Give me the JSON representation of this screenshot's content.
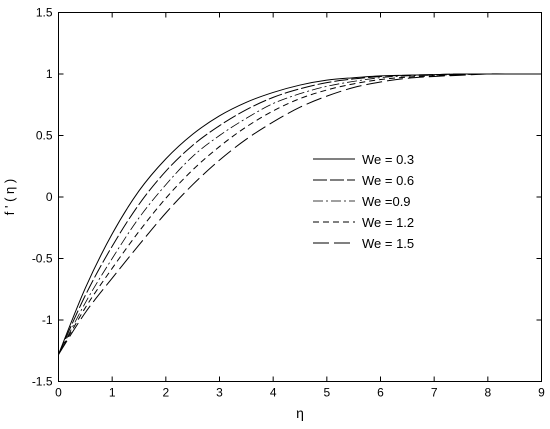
{
  "chart_data": {
    "type": "line",
    "title": "",
    "xlabel": "η",
    "ylabel": "f ' ( η )",
    "xlim": [
      0,
      9
    ],
    "ylim": [
      -1.5,
      1.5
    ],
    "xticks": [
      "0",
      "1",
      "2",
      "3",
      "4",
      "5",
      "6",
      "7",
      "8",
      "9"
    ],
    "yticks": [
      "-1.5",
      "-1",
      "-0.5",
      "0",
      "0.5",
      "1",
      "1.5"
    ],
    "grid": false,
    "legend_position": "center-right",
    "series": [
      {
        "name": "We = 0.3",
        "style": "solid",
        "x": [
          0,
          0.5,
          1,
          1.5,
          2,
          2.5,
          3,
          3.5,
          4,
          4.5,
          5,
          5.5,
          6,
          6.5,
          7,
          7.5,
          8,
          8.5,
          9
        ],
        "y": [
          -1.28,
          -0.74,
          -0.3,
          0.05,
          0.31,
          0.51,
          0.66,
          0.77,
          0.85,
          0.91,
          0.95,
          0.97,
          0.985,
          0.99,
          0.995,
          1.0,
          1.0,
          1.0,
          1.0
        ]
      },
      {
        "name": "We = 0.6",
        "style": "longdash",
        "x": [
          0,
          0.5,
          1,
          1.5,
          2,
          2.5,
          3,
          3.5,
          4,
          4.5,
          5,
          5.5,
          6,
          6.5,
          7,
          7.5,
          8,
          8.5,
          9
        ],
        "y": [
          -1.28,
          -0.8,
          -0.4,
          -0.06,
          0.21,
          0.42,
          0.58,
          0.71,
          0.81,
          0.88,
          0.93,
          0.96,
          0.98,
          0.99,
          0.995,
          1.0,
          1.0,
          1.0,
          1.0
        ]
      },
      {
        "name": "We =0.9",
        "style": "dashdot",
        "x": [
          0,
          0.5,
          1,
          1.5,
          2,
          2.5,
          3,
          3.5,
          4,
          4.5,
          5,
          5.5,
          6,
          6.5,
          7,
          7.5,
          8,
          8.5,
          9
        ],
        "y": [
          -1.28,
          -0.86,
          -0.5,
          -0.17,
          0.1,
          0.33,
          0.5,
          0.64,
          0.76,
          0.84,
          0.9,
          0.94,
          0.97,
          0.985,
          0.99,
          0.995,
          1.0,
          1.0,
          1.0
        ]
      },
      {
        "name": "We = 1.2",
        "style": "dashed",
        "x": [
          0,
          0.5,
          1,
          1.5,
          2,
          2.5,
          3,
          3.5,
          4,
          4.5,
          5,
          5.5,
          6,
          6.5,
          7,
          7.5,
          8,
          8.5,
          9
        ],
        "y": [
          -1.28,
          -0.9,
          -0.58,
          -0.28,
          -0.01,
          0.22,
          0.41,
          0.57,
          0.7,
          0.8,
          0.87,
          0.92,
          0.955,
          0.975,
          0.985,
          0.995,
          1.0,
          1.0,
          1.0
        ]
      },
      {
        "name": "We = 1.5",
        "style": "longdash2",
        "x": [
          0,
          0.5,
          1,
          1.5,
          2,
          2.5,
          3,
          3.5,
          4,
          4.5,
          5,
          5.5,
          6,
          6.5,
          7,
          7.5,
          8,
          8.5,
          9
        ],
        "y": [
          -1.28,
          -0.94,
          -0.66,
          -0.39,
          -0.13,
          0.1,
          0.3,
          0.47,
          0.61,
          0.73,
          0.82,
          0.89,
          0.935,
          0.965,
          0.98,
          0.99,
          1.0,
          1.0,
          1.0
        ]
      }
    ]
  }
}
